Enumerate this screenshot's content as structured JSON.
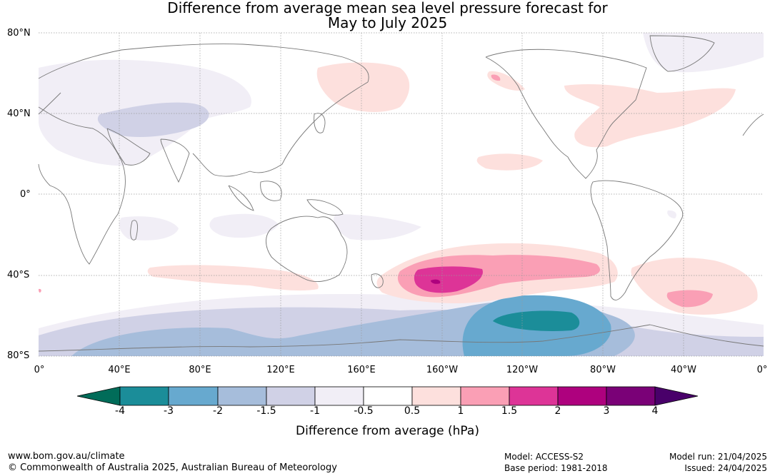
{
  "title_line1": "Difference from average mean sea level pressure forecast for",
  "title_line2": "May to July 2025",
  "lat_labels": [
    "80°N",
    "40°N",
    "0°",
    "40°S",
    "80°S"
  ],
  "lon_labels": [
    "0°",
    "40°E",
    "80°E",
    "120°E",
    "160°E",
    "160°W",
    "120°W",
    "80°W",
    "40°W",
    "0°"
  ],
  "colorbar": {
    "title": "Difference from average (hPa)",
    "tick_labels": [
      "-4",
      "-3",
      "-2",
      "-1.5",
      "-1",
      "-0.5",
      "0.5",
      "1",
      "1.5",
      "2",
      "3",
      "4"
    ],
    "colors": [
      "#1b8d99",
      "#67a9cf",
      "#a6bddb",
      "#d0d1e6",
      "#f1eef6",
      "#ffffff",
      "#fde0dd",
      "#fa9fb5",
      "#dd3497",
      "#ae017e",
      "#7a0177"
    ],
    "under_color": "#016c59",
    "over_color": "#49006a"
  },
  "footer": {
    "website": "www.bom.gov.au/climate",
    "copyright": "© Commonwealth of Australia 2025, Australian Bureau of Meteorology",
    "model": "Model: ACCESS-S2",
    "base_period": "Base period: 1981-2018",
    "model_run": "Model run: 21/04/2025",
    "issued": "Issued: 24/04/2025"
  }
}
